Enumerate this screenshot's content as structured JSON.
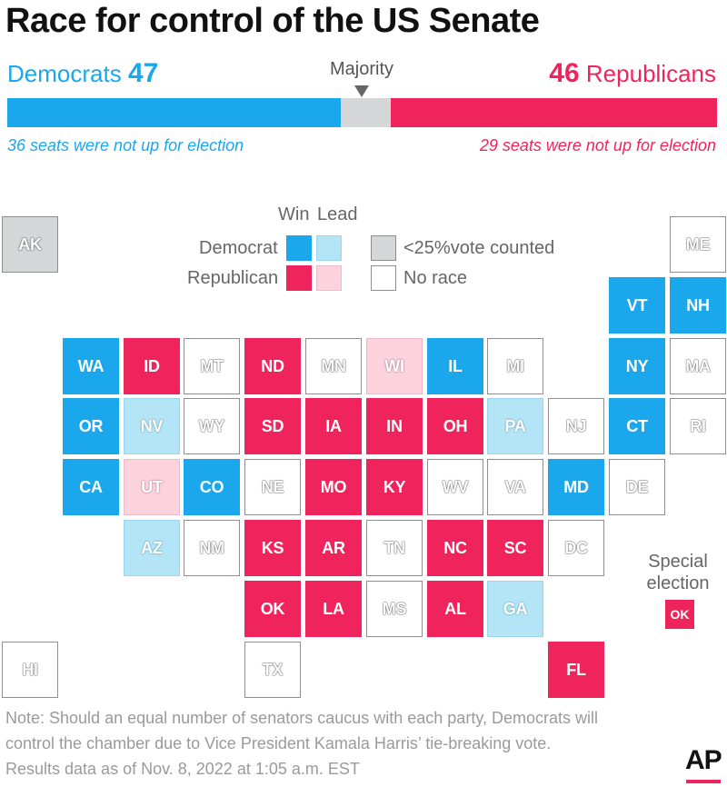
{
  "title": "Race for control of the US Senate",
  "colors": {
    "dem_win": "#1ba7ec",
    "dem_lead": "#b3e5f7",
    "rep_win": "#f0245c",
    "rep_lead": "#fcd2dc",
    "counting": "#d5d6d8",
    "no_race": "#ffffff",
    "majority": "#d5d6d8"
  },
  "summary": {
    "dem_label": "Democrats",
    "dem_seats": "47",
    "rep_label": "Republicans",
    "rep_seats": "46",
    "majority_label": "Majority",
    "total_seats": 100,
    "dem_note": "36 seats were not up for election",
    "rep_note": "29 seats were not up for election"
  },
  "legend": {
    "win": "Win",
    "lead": "Lead",
    "democrat": "Democrat",
    "republican": "Republican",
    "counting": "<25%vote counted",
    "no_race": "No race"
  },
  "states": [
    {
      "abbr": "AK",
      "status": "counting",
      "col": 0,
      "row": 0
    },
    {
      "abbr": "ME",
      "status": "no_race",
      "col": 11,
      "row": 0
    },
    {
      "abbr": "VT",
      "status": "dem_win",
      "col": 10,
      "row": 1
    },
    {
      "abbr": "NH",
      "status": "dem_win",
      "col": 11,
      "row": 1
    },
    {
      "abbr": "WA",
      "status": "dem_win",
      "col": 1,
      "row": 2
    },
    {
      "abbr": "ID",
      "status": "rep_win",
      "col": 2,
      "row": 2
    },
    {
      "abbr": "MT",
      "status": "no_race",
      "col": 3,
      "row": 2
    },
    {
      "abbr": "ND",
      "status": "rep_win",
      "col": 4,
      "row": 2
    },
    {
      "abbr": "MN",
      "status": "no_race",
      "col": 5,
      "row": 2
    },
    {
      "abbr": "WI",
      "status": "rep_lead",
      "col": 6,
      "row": 2
    },
    {
      "abbr": "IL",
      "status": "dem_win",
      "col": 7,
      "row": 2
    },
    {
      "abbr": "MI",
      "status": "no_race",
      "col": 8,
      "row": 2
    },
    {
      "abbr": "NY",
      "status": "dem_win",
      "col": 10,
      "row": 2
    },
    {
      "abbr": "MA",
      "status": "no_race",
      "col": 11,
      "row": 2
    },
    {
      "abbr": "OR",
      "status": "dem_win",
      "col": 1,
      "row": 3
    },
    {
      "abbr": "NV",
      "status": "dem_lead",
      "col": 2,
      "row": 3
    },
    {
      "abbr": "WY",
      "status": "no_race",
      "col": 3,
      "row": 3
    },
    {
      "abbr": "SD",
      "status": "rep_win",
      "col": 4,
      "row": 3
    },
    {
      "abbr": "IA",
      "status": "rep_win",
      "col": 5,
      "row": 3
    },
    {
      "abbr": "IN",
      "status": "rep_win",
      "col": 6,
      "row": 3
    },
    {
      "abbr": "OH",
      "status": "rep_win",
      "col": 7,
      "row": 3
    },
    {
      "abbr": "PA",
      "status": "dem_lead",
      "col": 8,
      "row": 3
    },
    {
      "abbr": "NJ",
      "status": "no_race",
      "col": 9,
      "row": 3
    },
    {
      "abbr": "CT",
      "status": "dem_win",
      "col": 10,
      "row": 3
    },
    {
      "abbr": "RI",
      "status": "no_race",
      "col": 11,
      "row": 3
    },
    {
      "abbr": "CA",
      "status": "dem_win",
      "col": 1,
      "row": 4
    },
    {
      "abbr": "UT",
      "status": "rep_lead",
      "col": 2,
      "row": 4
    },
    {
      "abbr": "CO",
      "status": "dem_win",
      "col": 3,
      "row": 4
    },
    {
      "abbr": "NE",
      "status": "no_race",
      "col": 4,
      "row": 4
    },
    {
      "abbr": "MO",
      "status": "rep_win",
      "col": 5,
      "row": 4
    },
    {
      "abbr": "KY",
      "status": "rep_win",
      "col": 6,
      "row": 4
    },
    {
      "abbr": "WV",
      "status": "no_race",
      "col": 7,
      "row": 4
    },
    {
      "abbr": "VA",
      "status": "no_race",
      "col": 8,
      "row": 4
    },
    {
      "abbr": "MD",
      "status": "dem_win",
      "col": 9,
      "row": 4
    },
    {
      "abbr": "DE",
      "status": "no_race",
      "col": 10,
      "row": 4
    },
    {
      "abbr": "AZ",
      "status": "dem_lead",
      "col": 2,
      "row": 5
    },
    {
      "abbr": "NM",
      "status": "no_race",
      "col": 3,
      "row": 5
    },
    {
      "abbr": "KS",
      "status": "rep_win",
      "col": 4,
      "row": 5
    },
    {
      "abbr": "AR",
      "status": "rep_win",
      "col": 5,
      "row": 5
    },
    {
      "abbr": "TN",
      "status": "no_race",
      "col": 6,
      "row": 5
    },
    {
      "abbr": "NC",
      "status": "rep_win",
      "col": 7,
      "row": 5
    },
    {
      "abbr": "SC",
      "status": "rep_win",
      "col": 8,
      "row": 5
    },
    {
      "abbr": "DC",
      "status": "no_race",
      "col": 9,
      "row": 5
    },
    {
      "abbr": "OK",
      "status": "rep_win",
      "col": 4,
      "row": 6
    },
    {
      "abbr": "LA",
      "status": "rep_win",
      "col": 5,
      "row": 6
    },
    {
      "abbr": "MS",
      "status": "no_race",
      "col": 6,
      "row": 6
    },
    {
      "abbr": "AL",
      "status": "rep_win",
      "col": 7,
      "row": 6
    },
    {
      "abbr": "GA",
      "status": "dem_lead",
      "col": 8,
      "row": 6
    },
    {
      "abbr": "HI",
      "status": "no_race",
      "col": 0,
      "row": 7
    },
    {
      "abbr": "TX",
      "status": "no_race",
      "col": 4,
      "row": 7
    },
    {
      "abbr": "FL",
      "status": "rep_win",
      "col": 9,
      "row": 7
    }
  ],
  "special": {
    "label_line1": "Special",
    "label_line2": "election",
    "abbr": "OK",
    "status": "rep_win"
  },
  "footnote": {
    "line1": "Note: Should an equal number of senators caucus with each party, Democrats will",
    "line2": "control the chamber due to Vice President Kamala Harris’ tie-breaking vote.",
    "line3": "Results data as of Nov. 8, 2022 at 1:05 a.m. EST"
  },
  "logo": "AP"
}
